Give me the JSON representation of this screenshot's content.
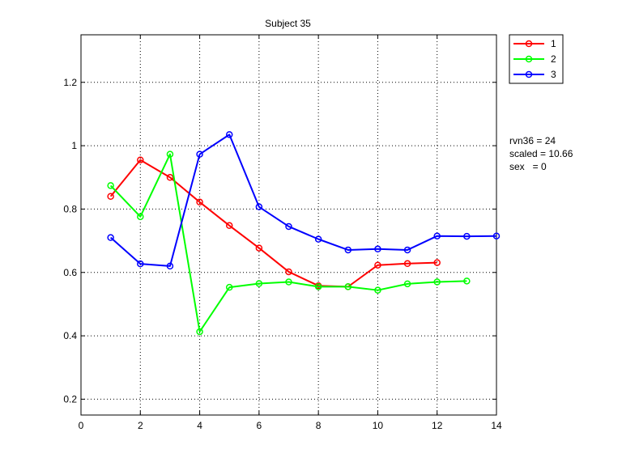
{
  "chart_data": {
    "type": "line",
    "title": "Subject 35",
    "xlabel": "",
    "ylabel": "",
    "xlim": [
      0,
      14
    ],
    "ylim": [
      0.15,
      1.35
    ],
    "xticks": [
      0,
      2,
      4,
      6,
      8,
      10,
      12,
      14
    ],
    "yticks": [
      0.2,
      0.4,
      0.6,
      0.8,
      1,
      1.2
    ],
    "xtick_labels": [
      "0",
      "2",
      "4",
      "6",
      "8",
      "10",
      "12",
      "14"
    ],
    "ytick_labels": [
      "0.2",
      "0.4",
      "0.6",
      "0.8",
      "1",
      "1.2"
    ],
    "grid": true,
    "legend_position": "outside-top-right",
    "series": [
      {
        "name": "1",
        "color": "#ff0000",
        "x": [
          1,
          2,
          3,
          4,
          5,
          6,
          7,
          8,
          9,
          10,
          11,
          12
        ],
        "y": [
          0.84,
          0.955,
          0.9,
          0.822,
          0.748,
          0.677,
          0.602,
          0.558,
          0.555,
          0.623,
          0.628,
          0.631
        ]
      },
      {
        "name": "2",
        "color": "#00ff00",
        "x": [
          1,
          2,
          3,
          4,
          5,
          6,
          7,
          8,
          9,
          10,
          11,
          12,
          13
        ],
        "y": [
          0.874,
          0.776,
          0.973,
          0.413,
          0.553,
          0.565,
          0.57,
          0.555,
          0.555,
          0.544,
          0.564,
          0.57,
          0.573
        ]
      },
      {
        "name": "3",
        "color": "#0000ff",
        "x": [
          1,
          2,
          3,
          4,
          5,
          6,
          7,
          8,
          9,
          10,
          11,
          12,
          13,
          14
        ],
        "y": [
          0.71,
          0.627,
          0.62,
          0.973,
          1.035,
          0.807,
          0.745,
          0.705,
          0.671,
          0.674,
          0.671,
          0.715,
          0.714,
          0.715
        ]
      }
    ],
    "annotations": [
      "rvn36 = 24",
      "scaled = 10.66",
      "sex   = 0"
    ]
  }
}
